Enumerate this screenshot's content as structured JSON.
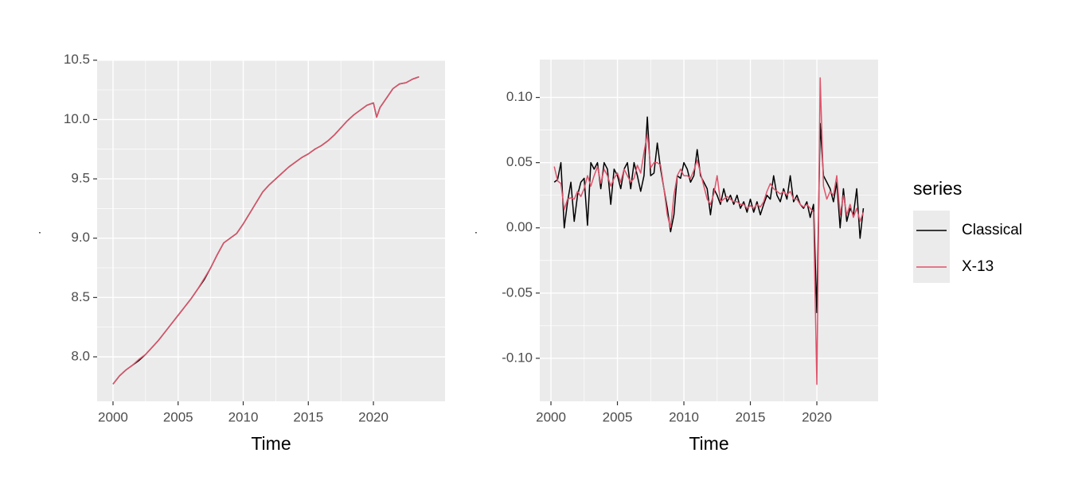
{
  "chart_data": [
    {
      "type": "line",
      "x_label": "Time",
      "y_label": ".",
      "x": [
        2000,
        2000.5,
        2001,
        2001.5,
        2002,
        2002.5,
        2003,
        2003.5,
        2004,
        2004.5,
        2005,
        2005.5,
        2006,
        2006.5,
        2007,
        2007.5,
        2008,
        2008.5,
        2009,
        2009.5,
        2010,
        2010.5,
        2011,
        2011.5,
        2012,
        2012.5,
        2013,
        2013.5,
        2014,
        2014.5,
        2015,
        2015.5,
        2016,
        2016.5,
        2017,
        2017.5,
        2018,
        2018.5,
        2019,
        2019.5,
        2020,
        2020.25,
        2020.5,
        2021,
        2021.5,
        2022,
        2022.5,
        2023,
        2023.5
      ],
      "series": [
        {
          "name": "Classical",
          "color": "#000000",
          "values": [
            7.77,
            7.84,
            7.89,
            7.93,
            7.97,
            8.02,
            8.08,
            8.14,
            8.21,
            8.28,
            8.35,
            8.42,
            8.49,
            8.57,
            8.65,
            8.75,
            8.86,
            8.96,
            9.0,
            9.04,
            9.12,
            9.21,
            9.3,
            9.39,
            9.45,
            9.5,
            9.55,
            9.6,
            9.64,
            9.68,
            9.71,
            9.75,
            9.78,
            9.82,
            9.87,
            9.93,
            9.99,
            10.04,
            10.08,
            10.12,
            10.14,
            10.02,
            10.1,
            10.18,
            10.26,
            10.3,
            10.31,
            10.34,
            10.36
          ]
        },
        {
          "name": "X-13",
          "color": "#DF536B",
          "values": [
            7.77,
            7.84,
            7.89,
            7.93,
            7.98,
            8.02,
            8.08,
            8.14,
            8.21,
            8.28,
            8.35,
            8.42,
            8.49,
            8.57,
            8.66,
            8.75,
            8.86,
            8.96,
            9.0,
            9.04,
            9.12,
            9.21,
            9.3,
            9.39,
            9.45,
            9.5,
            9.55,
            9.6,
            9.64,
            9.68,
            9.71,
            9.75,
            9.78,
            9.82,
            9.87,
            9.93,
            9.99,
            10.04,
            10.08,
            10.12,
            10.14,
            10.02,
            10.1,
            10.18,
            10.26,
            10.3,
            10.31,
            10.34,
            10.36
          ]
        }
      ],
      "xlim": [
        1998.78,
        2025.5
      ],
      "xticks": [
        2000,
        2005,
        2010,
        2015,
        2020
      ],
      "ylim": [
        7.625,
        10.505
      ],
      "yticks": [
        {
          "value": 8,
          "label": "8.0"
        },
        8.5,
        {
          "value": 9,
          "label": "9.0"
        },
        9.5,
        {
          "value": 10,
          "label": "10.0"
        },
        10.5
      ],
      "grid": true
    },
    {
      "type": "line",
      "x_label": "Time",
      "y_label": ".",
      "legend_title": "series",
      "legend": "right",
      "x": [
        2000.25,
        2000.5,
        2000.75,
        2001,
        2001.25,
        2001.5,
        2001.75,
        2002,
        2002.25,
        2002.5,
        2002.75,
        2003,
        2003.25,
        2003.5,
        2003.75,
        2004,
        2004.25,
        2004.5,
        2004.75,
        2005,
        2005.25,
        2005.5,
        2005.75,
        2006,
        2006.25,
        2006.5,
        2006.75,
        2007,
        2007.25,
        2007.5,
        2007.75,
        2008,
        2008.25,
        2008.5,
        2008.75,
        2009,
        2009.25,
        2009.5,
        2009.75,
        2010,
        2010.25,
        2010.5,
        2010.75,
        2011,
        2011.25,
        2011.5,
        2011.75,
        2012,
        2012.25,
        2012.5,
        2012.75,
        2013,
        2013.25,
        2013.5,
        2013.75,
        2014,
        2014.25,
        2014.5,
        2014.75,
        2015,
        2015.25,
        2015.5,
        2015.75,
        2016,
        2016.25,
        2016.5,
        2016.75,
        2017,
        2017.25,
        2017.5,
        2017.75,
        2018,
        2018.25,
        2018.5,
        2018.75,
        2019,
        2019.25,
        2019.5,
        2019.75,
        2020,
        2020.25,
        2020.5,
        2020.75,
        2021,
        2021.25,
        2021.5,
        2021.75,
        2022,
        2022.25,
        2022.5,
        2022.75,
        2023,
        2023.25,
        2023.5
      ],
      "series": [
        {
          "name": "Classical",
          "color": "#000000",
          "values": [
            0.035,
            0.037,
            0.05,
            0.0,
            0.02,
            0.035,
            0.005,
            0.025,
            0.035,
            0.038,
            0.002,
            0.05,
            0.045,
            0.05,
            0.03,
            0.05,
            0.045,
            0.018,
            0.045,
            0.04,
            0.03,
            0.045,
            0.05,
            0.03,
            0.05,
            0.04,
            0.028,
            0.04,
            0.085,
            0.04,
            0.042,
            0.065,
            0.045,
            0.03,
            0.015,
            -0.003,
            0.01,
            0.04,
            0.038,
            0.05,
            0.045,
            0.035,
            0.04,
            0.06,
            0.04,
            0.035,
            0.03,
            0.01,
            0.03,
            0.025,
            0.018,
            0.03,
            0.02,
            0.025,
            0.018,
            0.025,
            0.015,
            0.02,
            0.012,
            0.022,
            0.012,
            0.02,
            0.01,
            0.018,
            0.025,
            0.022,
            0.04,
            0.025,
            0.02,
            0.03,
            0.022,
            0.04,
            0.02,
            0.025,
            0.018,
            0.015,
            0.02,
            0.008,
            0.018,
            -0.065,
            0.08,
            0.04,
            0.035,
            0.03,
            0.02,
            0.035,
            0.0,
            0.03,
            0.005,
            0.015,
            0.01,
            0.03,
            -0.008,
            0.015
          ]
        },
        {
          "name": "X-13",
          "color": "#DF536B",
          "values": [
            0.047,
            0.036,
            0.034,
            0.014,
            0.022,
            0.023,
            0.022,
            0.028,
            0.024,
            0.03,
            0.04,
            0.032,
            0.04,
            0.047,
            0.034,
            0.045,
            0.04,
            0.032,
            0.038,
            0.042,
            0.035,
            0.045,
            0.04,
            0.035,
            0.038,
            0.048,
            0.042,
            0.058,
            0.072,
            0.046,
            0.05,
            0.05,
            0.048,
            0.03,
            0.01,
            0.0,
            0.025,
            0.04,
            0.045,
            0.04,
            0.04,
            0.038,
            0.044,
            0.052,
            0.042,
            0.032,
            0.022,
            0.018,
            0.026,
            0.04,
            0.02,
            0.022,
            0.024,
            0.022,
            0.02,
            0.02,
            0.018,
            0.018,
            0.015,
            0.017,
            0.015,
            0.018,
            0.016,
            0.02,
            0.028,
            0.034,
            0.03,
            0.028,
            0.026,
            0.028,
            0.025,
            0.028,
            0.022,
            0.022,
            0.018,
            0.016,
            0.018,
            0.015,
            0.012,
            -0.12,
            0.115,
            0.032,
            0.022,
            0.028,
            0.025,
            0.04,
            0.01,
            0.025,
            0.01,
            0.018,
            0.008,
            0.015,
            0.005,
            0.012
          ]
        }
      ],
      "xlim": [
        1999.16,
        2024.61
      ],
      "xticks": [
        2000,
        2005,
        2010,
        2015,
        2020
      ],
      "ylim": [
        -0.133,
        0.129
      ],
      "yticks": [
        {
          "value": -0.1,
          "label": "-0.10"
        },
        -0.05,
        {
          "value": 0,
          "label": "0.00"
        },
        0.05,
        {
          "value": 0.1,
          "label": "0.10"
        }
      ],
      "grid": true
    }
  ]
}
